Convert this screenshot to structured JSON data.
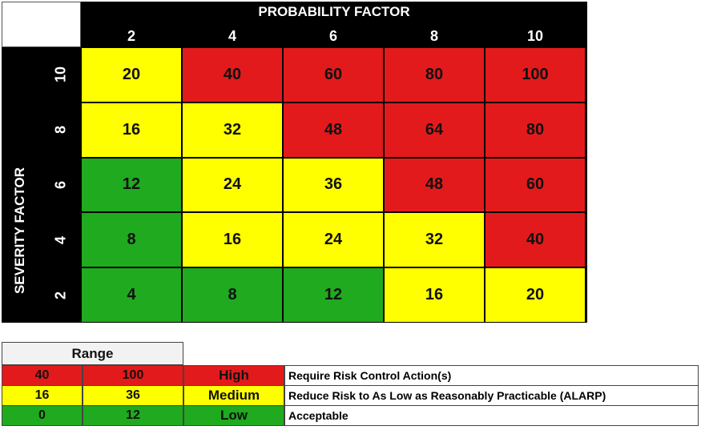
{
  "matrix": {
    "probability_title": "PROBABILITY FACTOR",
    "severity_title": "SEVERITY FACTOR",
    "probability_values": [
      "2",
      "4",
      "6",
      "8",
      "10"
    ],
    "severity_values": [
      "10",
      "8",
      "6",
      "4",
      "2"
    ],
    "rows": [
      [
        "20",
        "40",
        "60",
        "80",
        "100"
      ],
      [
        "16",
        "32",
        "48",
        "64",
        "80"
      ],
      [
        "12",
        "24",
        "36",
        "48",
        "60"
      ],
      [
        "8",
        "16",
        "24",
        "32",
        "40"
      ],
      [
        "4",
        "8",
        "12",
        "16",
        "20"
      ]
    ],
    "cell_levels": [
      [
        "medium",
        "high",
        "high",
        "high",
        "high"
      ],
      [
        "medium",
        "medium",
        "high",
        "high",
        "high"
      ],
      [
        "low",
        "medium",
        "medium",
        "high",
        "high"
      ],
      [
        "low",
        "medium",
        "medium",
        "medium",
        "high"
      ],
      [
        "low",
        "low",
        "low",
        "medium",
        "medium"
      ]
    ]
  },
  "colors": {
    "high": "#e31a1c",
    "medium": "#ffff00",
    "low": "#1faa1f"
  },
  "legend": {
    "range_label": "Range",
    "rows": [
      {
        "min": "40",
        "max": "100",
        "level": "High",
        "color_key": "high",
        "description": "Require Risk Control Action(s)"
      },
      {
        "min": "16",
        "max": "36",
        "level": "Medium",
        "color_key": "medium",
        "description": "Reduce Risk to As Low as Reasonably Practicable (ALARP)"
      },
      {
        "min": "0",
        "max": "12",
        "level": "Low",
        "color_key": "low",
        "description": "Acceptable"
      }
    ]
  }
}
